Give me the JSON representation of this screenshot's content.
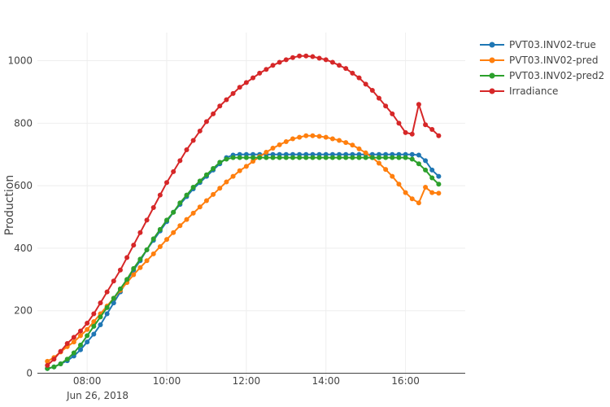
{
  "chart_data": {
    "type": "line",
    "title": "",
    "xlabel": "",
    "ylabel": "Production",
    "x_axis": {
      "type": "date",
      "range": [
        "2018-06-26 06:45",
        "2018-06-26 17:30"
      ],
      "tick_labels": [
        "08:00",
        "10:00",
        "12:00",
        "14:00",
        "16:00"
      ],
      "tick_values": [
        "2018-06-26 08:00",
        "2018-06-26 10:00",
        "2018-06-26 12:00",
        "2018-06-26 14:00",
        "2018-06-26 16:00"
      ],
      "date_label": "Jun 26, 2018",
      "grid": true
    },
    "y_axis": {
      "range": [
        -30,
        1090
      ],
      "tick_values": [
        0,
        200,
        400,
        600,
        800,
        1000
      ],
      "tick_labels": [
        "0",
        "200",
        "400",
        "600",
        "800",
        "1000"
      ],
      "grid": true
    },
    "legend": {
      "placement": "top-right"
    },
    "x": [
      "2018-06-26 07:00",
      "2018-06-26 07:10",
      "2018-06-26 07:20",
      "2018-06-26 07:30",
      "2018-06-26 07:40",
      "2018-06-26 07:50",
      "2018-06-26 08:00",
      "2018-06-26 08:10",
      "2018-06-26 08:20",
      "2018-06-26 08:30",
      "2018-06-26 08:40",
      "2018-06-26 08:50",
      "2018-06-26 09:00",
      "2018-06-26 09:10",
      "2018-06-26 09:20",
      "2018-06-26 09:30",
      "2018-06-26 09:40",
      "2018-06-26 09:50",
      "2018-06-26 10:00",
      "2018-06-26 10:10",
      "2018-06-26 10:20",
      "2018-06-26 10:30",
      "2018-06-26 10:40",
      "2018-06-26 10:50",
      "2018-06-26 11:00",
      "2018-06-26 11:10",
      "2018-06-26 11:20",
      "2018-06-26 11:30",
      "2018-06-26 11:40",
      "2018-06-26 11:50",
      "2018-06-26 12:00",
      "2018-06-26 12:10",
      "2018-06-26 12:20",
      "2018-06-26 12:30",
      "2018-06-26 12:40",
      "2018-06-26 12:50",
      "2018-06-26 13:00",
      "2018-06-26 13:10",
      "2018-06-26 13:20",
      "2018-06-26 13:30",
      "2018-06-26 13:40",
      "2018-06-26 13:50",
      "2018-06-26 14:00",
      "2018-06-26 14:10",
      "2018-06-26 14:20",
      "2018-06-26 14:30",
      "2018-06-26 14:40",
      "2018-06-26 14:50",
      "2018-06-26 15:00",
      "2018-06-26 15:10",
      "2018-06-26 15:20",
      "2018-06-26 15:30",
      "2018-06-26 15:40",
      "2018-06-26 15:50",
      "2018-06-26 16:00",
      "2018-06-26 16:10",
      "2018-06-26 16:20",
      "2018-06-26 16:30",
      "2018-06-26 16:40",
      "2018-06-26 16:50"
    ],
    "series": [
      {
        "name": "PVT03.INV02-true",
        "color": "#1f77b4",
        "values": [
          15,
          20,
          30,
          40,
          55,
          75,
          100,
          125,
          155,
          190,
          225,
          260,
          295,
          330,
          360,
          395,
          425,
          455,
          485,
          515,
          540,
          565,
          590,
          610,
          630,
          650,
          670,
          690,
          698,
          700,
          700,
          700,
          700,
          700,
          700,
          700,
          700,
          700,
          700,
          700,
          700,
          700,
          700,
          700,
          700,
          700,
          700,
          700,
          700,
          700,
          700,
          700,
          700,
          700,
          700,
          700,
          698,
          680,
          650,
          630
        ]
      },
      {
        "name": "PVT03.INV02-pred",
        "color": "#ff7f0e",
        "values": [
          38,
          50,
          68,
          85,
          100,
          120,
          140,
          165,
          190,
          215,
          240,
          265,
          290,
          315,
          338,
          360,
          382,
          405,
          428,
          450,
          472,
          492,
          512,
          532,
          552,
          572,
          592,
          612,
          630,
          648,
          662,
          678,
          693,
          707,
          720,
          731,
          741,
          750,
          755,
          760,
          760,
          758,
          755,
          750,
          745,
          738,
          730,
          718,
          705,
          690,
          672,
          652,
          630,
          605,
          578,
          558,
          545,
          595,
          578,
          576
        ]
      },
      {
        "name": "PVT03.INV02-pred2",
        "color": "#2ca02c",
        "values": [
          15,
          20,
          30,
          45,
          65,
          90,
          120,
          150,
          180,
          210,
          240,
          270,
          300,
          335,
          365,
          395,
          430,
          460,
          490,
          515,
          545,
          570,
          595,
          615,
          635,
          655,
          675,
          685,
          690,
          690,
          690,
          690,
          690,
          690,
          690,
          690,
          690,
          690,
          690,
          690,
          690,
          690,
          690,
          690,
          690,
          690,
          690,
          690,
          690,
          690,
          690,
          690,
          690,
          690,
          690,
          685,
          670,
          650,
          625,
          605
        ]
      },
      {
        "name": "Irradiance",
        "color": "#d62728",
        "values": [
          25,
          45,
          70,
          95,
          115,
          135,
          160,
          190,
          225,
          260,
          295,
          330,
          370,
          410,
          450,
          490,
          530,
          570,
          610,
          645,
          680,
          715,
          745,
          775,
          805,
          830,
          855,
          875,
          895,
          915,
          930,
          945,
          960,
          972,
          985,
          995,
          1003,
          1010,
          1015,
          1015,
          1013,
          1008,
          1003,
          995,
          985,
          975,
          960,
          945,
          925,
          905,
          880,
          855,
          830,
          800,
          770,
          765,
          860,
          795,
          780,
          760
        ]
      }
    ]
  }
}
